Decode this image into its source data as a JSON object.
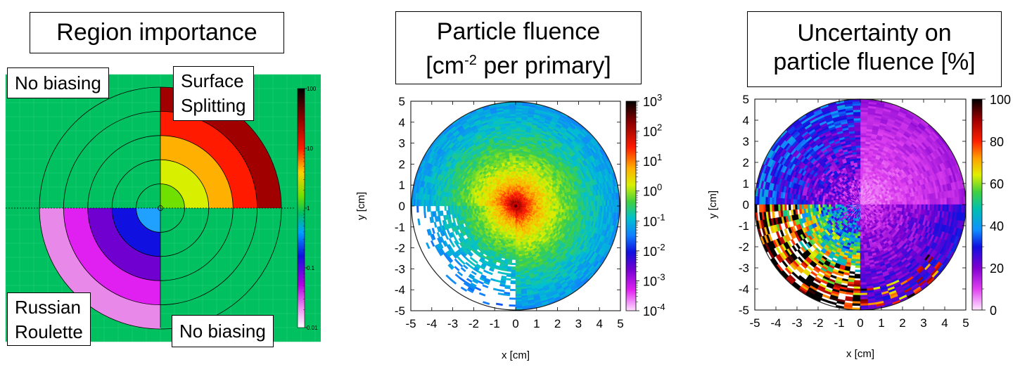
{
  "panels": {
    "importance": {
      "title": "Region importance",
      "labels": {
        "top_left": "No biasing",
        "top_right_line1": "Surface",
        "top_right_line2": "Splitting",
        "bottom_left_line1": "Russian",
        "bottom_left_line2": "Roulette",
        "bottom_right": "No biasing"
      }
    },
    "fluence": {
      "title_line1": "Particle fluence",
      "title_line2_pre": "[cm",
      "title_line2_sup": "-2",
      "title_line2_post": " per primary]"
    },
    "uncertainty": {
      "title_line1": "Uncertainty on",
      "title_line2": "particle fluence [%]"
    }
  },
  "colors": {
    "background_green": "#00c060",
    "white_gap": "#ffffff"
  },
  "chart_data": [
    {
      "type": "heatmap",
      "name": "Region importance",
      "geometry": "concentric semicircular shells, radii in units of outer radius",
      "shell_outer_radii_fraction": [
        0.2,
        0.4,
        0.6,
        0.8,
        1.0
      ],
      "top_right_importance": [
        1.5,
        3.5,
        6,
        14,
        40
      ],
      "top_right_colors": [
        "#70e000",
        "#d8f000",
        "#ffb000",
        "#ff1a00",
        "#a00000"
      ],
      "bottom_left_importance": [
        0.5,
        0.2,
        0.1,
        0.05,
        0.03
      ],
      "bottom_left_colors": [
        "#20a0ff",
        "#1010e0",
        "#7000d0",
        "#e020f0",
        "#e888e8"
      ],
      "other_quadrants_importance": 1,
      "colorbar": {
        "scale": "log",
        "range": [
          0.01,
          100
        ],
        "tick_labels": [
          "100",
          "10",
          "1",
          "0.1",
          "0.01"
        ]
      }
    },
    {
      "type": "heatmap",
      "name": "Particle fluence",
      "xlabel": "x [cm]",
      "ylabel": "y [cm]",
      "xlim": [
        -5,
        5
      ],
      "ylim": [
        -5,
        5
      ],
      "x_ticks": [
        "-5",
        "-4",
        "-3",
        "-2",
        "-1",
        "0",
        "1",
        "2",
        "3",
        "4",
        "5"
      ],
      "y_ticks": [
        "-5",
        "-4",
        "-3",
        "-2",
        "-1",
        "0",
        "1",
        "2",
        "3",
        "4",
        "5"
      ],
      "peak_value_at_center": 1000,
      "value_at_r5": 0.01,
      "colorbar": {
        "scale": "log",
        "range": [
          0.0001,
          1000
        ],
        "tick_base": "10",
        "tick_exponents": [
          "3",
          "2",
          "1",
          "0",
          "-1",
          "-2",
          "-3",
          "-4"
        ]
      }
    },
    {
      "type": "heatmap",
      "name": "Uncertainty on particle fluence",
      "xlabel": "x [cm]",
      "ylabel": "y [cm]",
      "xlim": [
        -5,
        5
      ],
      "ylim": [
        -5,
        5
      ],
      "x_ticks": [
        "-5",
        "-4",
        "-3",
        "-2",
        "-1",
        "0",
        "1",
        "2",
        "3",
        "4",
        "5"
      ],
      "y_ticks": [
        "-5",
        "-4",
        "-3",
        "-2",
        "-1",
        "0",
        "1",
        "2",
        "3",
        "4",
        "5"
      ],
      "typical_uncertainty_top_right_percent": 10,
      "typical_uncertainty_bottom_left_percent": 60,
      "colorbar": {
        "scale": "linear",
        "range": [
          0,
          100
        ],
        "tick_labels": [
          "100",
          "80",
          "60",
          "40",
          "20",
          "0"
        ]
      }
    }
  ]
}
